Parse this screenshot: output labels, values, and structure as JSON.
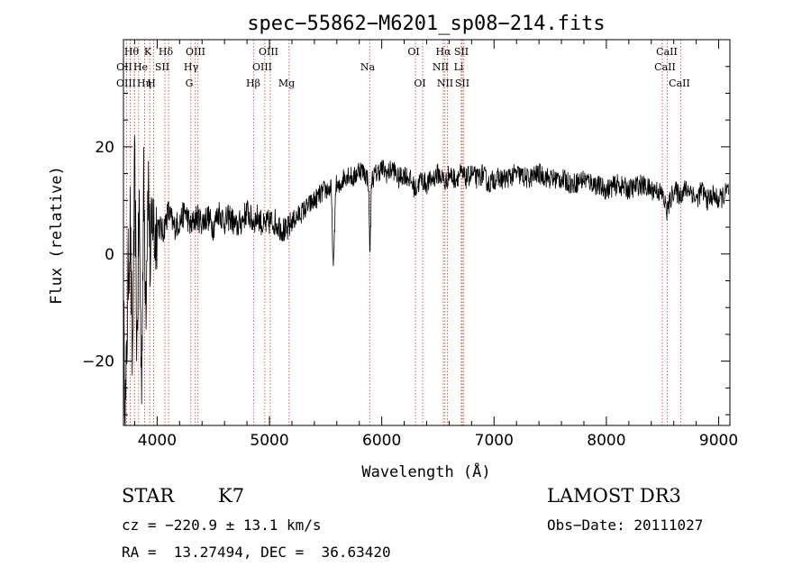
{
  "chart_data": {
    "type": "line",
    "title": "spec−55862−M6201_sp08−214.fits",
    "xlabel": "Wavelength (Å)",
    "ylabel": "Flux (relative)",
    "xlim": [
      3700,
      9100
    ],
    "ylim": [
      -32,
      40
    ],
    "x_ticks": [
      4000,
      5000,
      6000,
      7000,
      8000,
      9000
    ],
    "x_tick_labels": [
      "4000",
      "5000",
      "6000",
      "7000",
      "8000",
      "9000"
    ],
    "y_ticks": [
      -20,
      0,
      20
    ],
    "y_tick_labels": [
      "−20",
      "0",
      "20"
    ],
    "series": [
      {
        "name": "flux",
        "x": [
          3700,
          3720,
          3740,
          3760,
          3780,
          3800,
          3820,
          3840,
          3860,
          3880,
          3900,
          3920,
          3940,
          3960,
          3980,
          4000,
          4050,
          4100,
          4150,
          4200,
          4250,
          4300,
          4350,
          4400,
          4450,
          4500,
          4550,
          4600,
          4650,
          4700,
          4750,
          4800,
          4850,
          4900,
          4950,
          5000,
          5050,
          5100,
          5150,
          5200,
          5250,
          5300,
          5350,
          5400,
          5450,
          5500,
          5550,
          5570,
          5590,
          5620,
          5650,
          5700,
          5750,
          5800,
          5850,
          5880,
          5895,
          5910,
          5950,
          6000,
          6050,
          6100,
          6150,
          6200,
          6250,
          6300,
          6350,
          6400,
          6450,
          6500,
          6550,
          6563,
          6600,
          6650,
          6700,
          6750,
          6800,
          6850,
          6900,
          6950,
          7000,
          7100,
          7200,
          7300,
          7400,
          7500,
          7600,
          7700,
          7800,
          7900,
          8000,
          8100,
          8200,
          8300,
          8400,
          8450,
          8500,
          8540,
          8600,
          8650,
          8700,
          8750,
          8800,
          8850,
          8900,
          8950,
          9000,
          9050,
          9090
        ],
        "y": [
          -12,
          -30,
          -5,
          6,
          -22,
          16,
          -18,
          10,
          -25,
          12,
          -8,
          15,
          -3,
          8,
          2,
          6,
          4,
          8,
          5,
          6,
          8,
          5,
          7,
          6,
          7,
          5,
          8,
          6,
          7,
          5,
          6,
          8,
          6,
          7,
          5,
          6,
          6,
          5,
          4,
          6,
          7,
          8,
          9,
          10,
          11,
          12,
          12,
          -4,
          13,
          12,
          14,
          15,
          14,
          16,
          15,
          14,
          0,
          14,
          15,
          16,
          15,
          16,
          14,
          15,
          14,
          12,
          14,
          13,
          14,
          15,
          14,
          13,
          15,
          14,
          15,
          14,
          15,
          14,
          15,
          13,
          14,
          14,
          15,
          14,
          15,
          14,
          14,
          13,
          14,
          13,
          12,
          13,
          12,
          13,
          12,
          12,
          11,
          8,
          12,
          11,
          12,
          12,
          10,
          12,
          10,
          11,
          10,
          11,
          12
        ]
      }
    ],
    "lines": [
      {
        "name": "Hθ",
        "wavelength": 3798
      },
      {
        "name": "OII",
        "wavelength": 3727
      },
      {
        "name": "OIII",
        "wavelength": 3760
      },
      {
        "name": "He",
        "wavelength": 3889
      },
      {
        "name": "Hη",
        "wavelength": 3835
      },
      {
        "name": "K",
        "wavelength": 3934
      },
      {
        "name": "H",
        "wavelength": 3968
      },
      {
        "name": "SII",
        "wavelength": 4069
      },
      {
        "name": "Hδ",
        "wavelength": 4102
      },
      {
        "name": "OIII",
        "wavelength": 4300
      },
      {
        "name": "Hγ",
        "wavelength": 4340
      },
      {
        "name": "G",
        "wavelength": 4364
      },
      {
        "name": "Hβ",
        "wavelength": 4861
      },
      {
        "name": "OIII",
        "wavelength": 4959
      },
      {
        "name": "OIII",
        "wavelength": 5007
      },
      {
        "name": "Mg",
        "wavelength": 5175
      },
      {
        "name": "Na",
        "wavelength": 5893
      },
      {
        "name": "OI",
        "wavelength": 6300
      },
      {
        "name": "OI",
        "wavelength": 6364
      },
      {
        "name": "NII",
        "wavelength": 6548
      },
      {
        "name": "Hα",
        "wavelength": 6563
      },
      {
        "name": "NII",
        "wavelength": 6584
      },
      {
        "name": "SII",
        "wavelength": 6716
      },
      {
        "name": "Li",
        "wavelength": 6708
      },
      {
        "name": "SII",
        "wavelength": 6731
      },
      {
        "name": "CaII",
        "wavelength": 8498
      },
      {
        "name": "CaII",
        "wavelength": 8542
      },
      {
        "name": "CaII",
        "wavelength": 8662
      }
    ],
    "line_label_rows": [
      [
        "Hθ",
        "K",
        "Hδ",
        "OIII",
        "OIII",
        "OI",
        "Hα",
        "SII",
        "CaII"
      ],
      [
        "OII",
        "He",
        "SII",
        "Hγ",
        "OIII",
        "Na",
        "NII",
        "Li",
        "CaII"
      ],
      [
        "OIII",
        "Hη",
        "H",
        "G",
        "Hβ",
        "Mg",
        "OI",
        "NII",
        "SII",
        "CaII"
      ]
    ]
  },
  "info": {
    "object_type": "STAR",
    "subclass": "K7",
    "survey": "LAMOST DR3",
    "redshift": "cz = −220.9 ± 13.1 km/s",
    "obs_date": "Obs−Date: 20111027",
    "coords": "RA =  13.27494, DEC =  36.63420"
  }
}
